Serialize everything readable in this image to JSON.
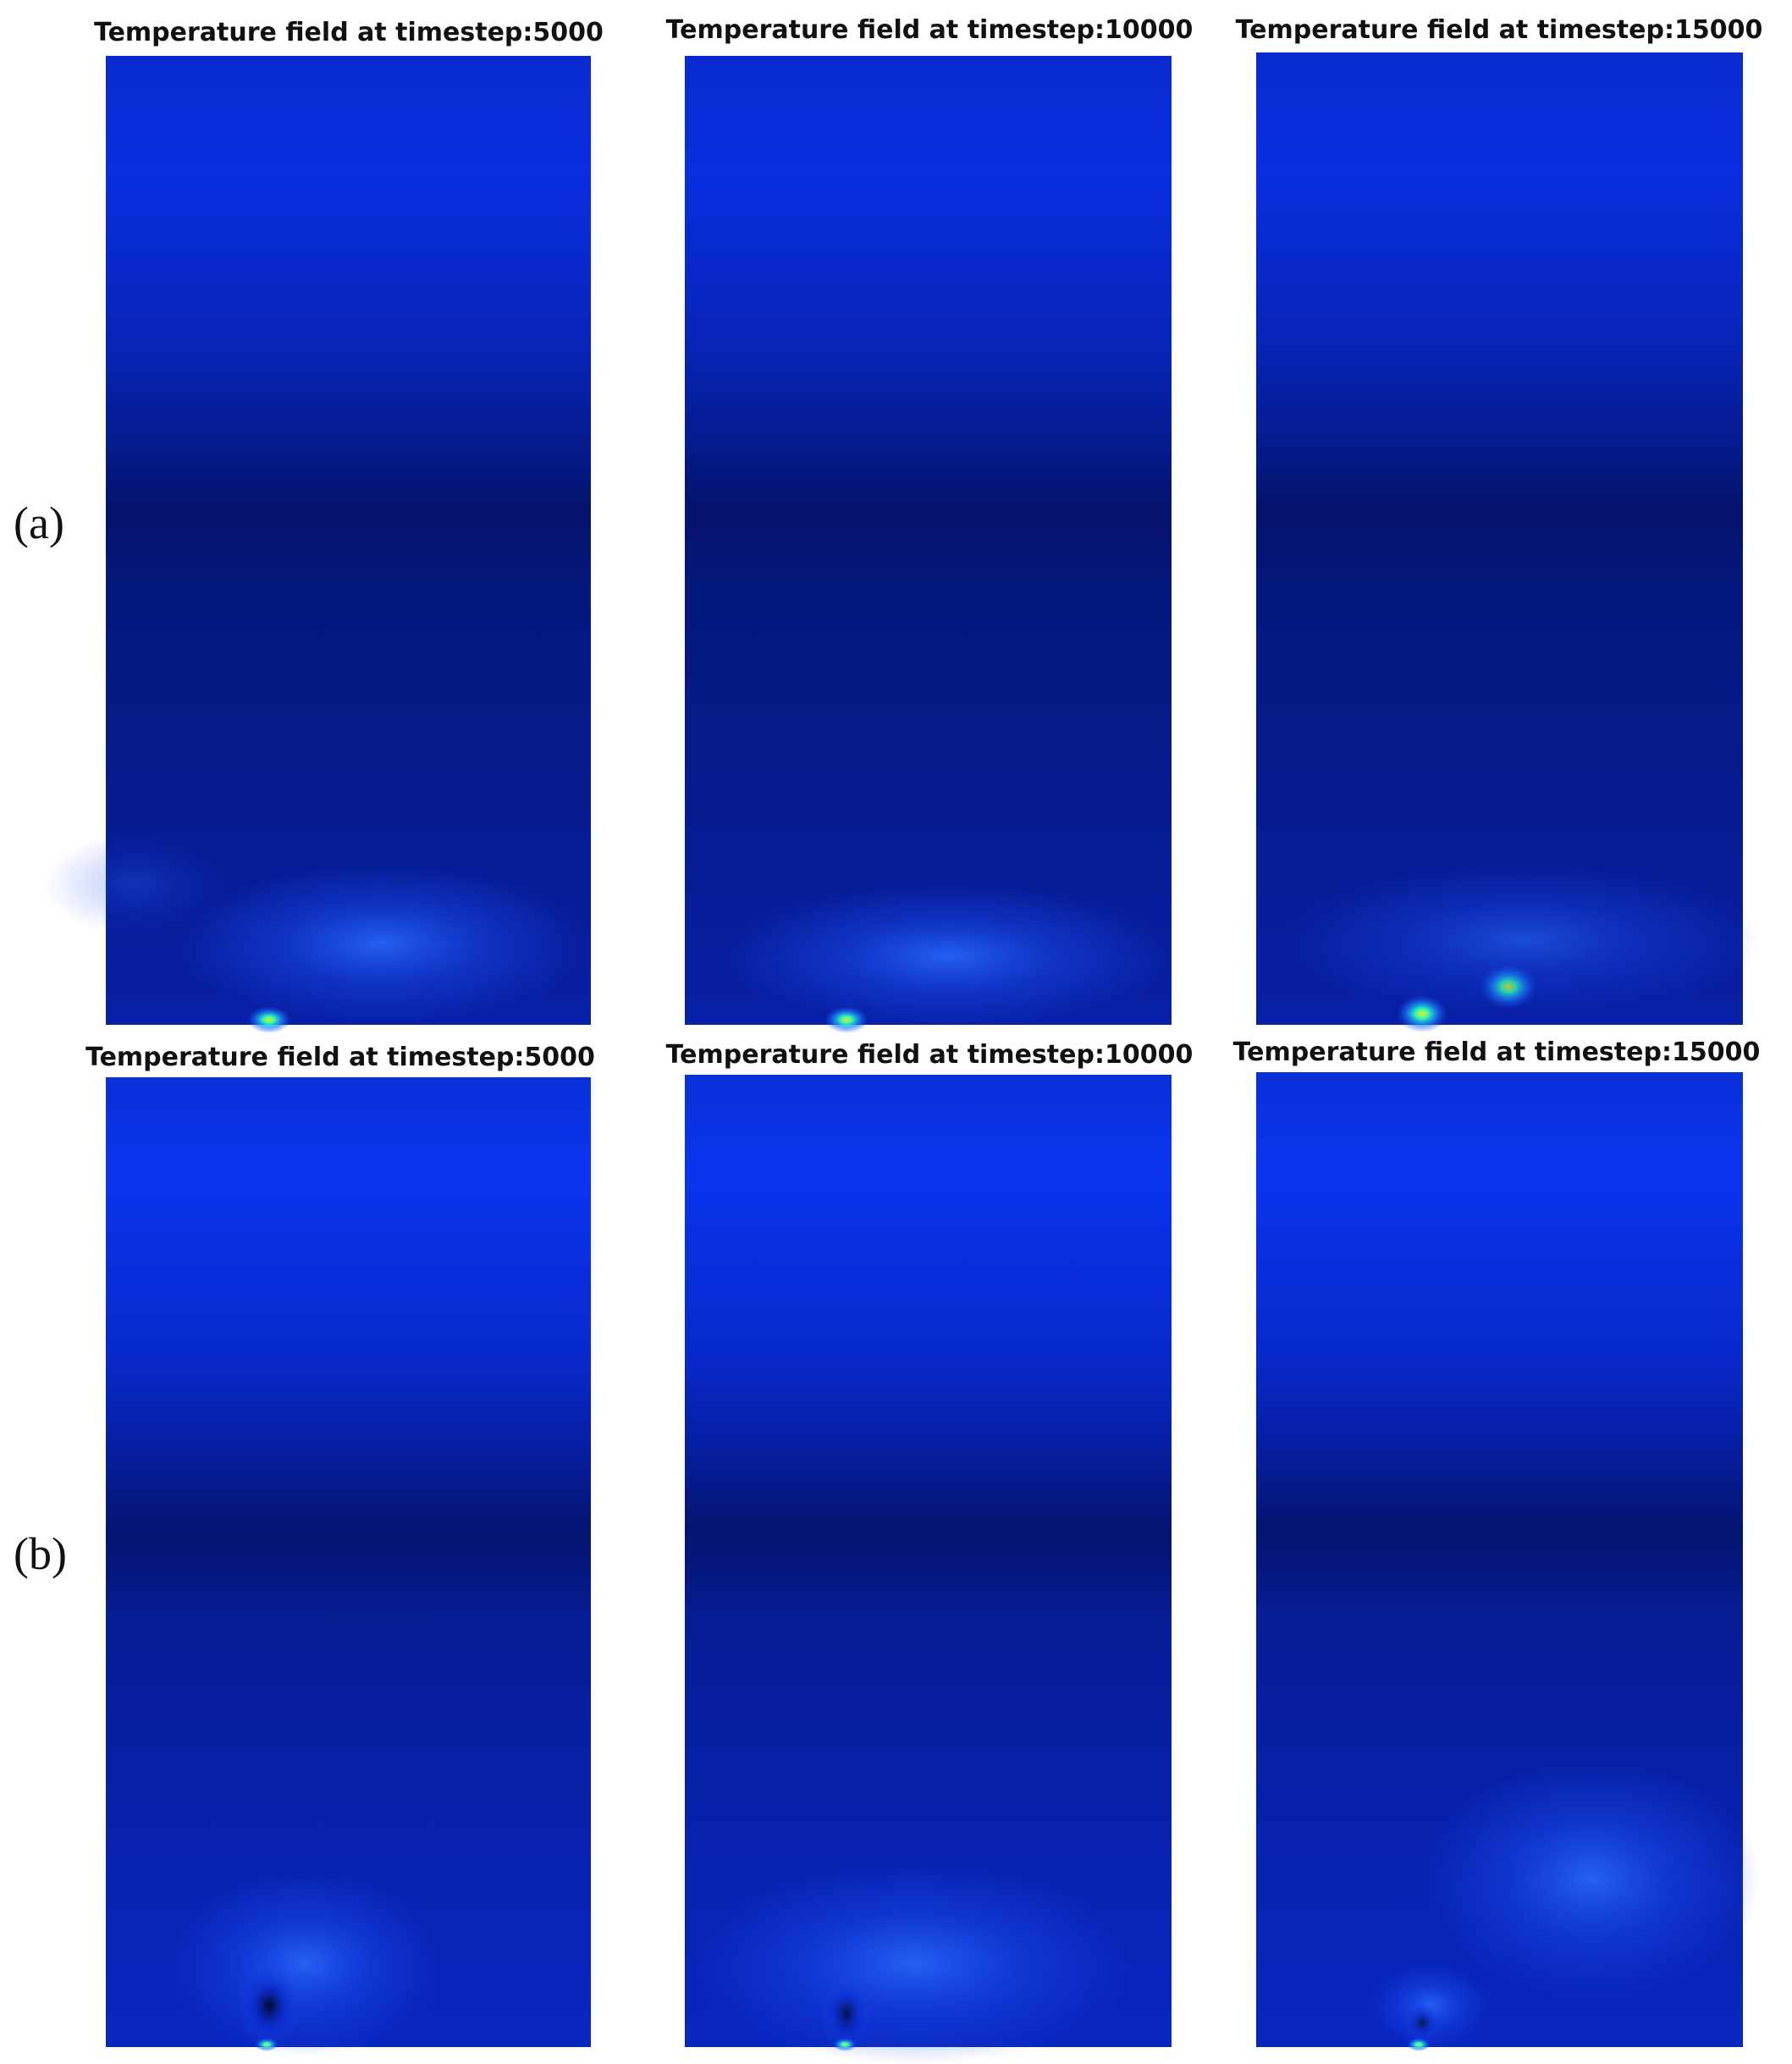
{
  "rows": [
    {
      "label": "(a)",
      "panels": [
        {
          "title": "Temperature field at timestep:5000"
        },
        {
          "title": "Temperature field at timestep:10000"
        },
        {
          "title": "Temperature field at timestep:15000"
        }
      ]
    },
    {
      "label": "(b)",
      "panels": [
        {
          "title": "Temperature field at timestep:5000"
        },
        {
          "title": "Temperature field at timestep:10000"
        },
        {
          "title": "Temperature field at timestep:15000"
        }
      ]
    }
  ]
}
